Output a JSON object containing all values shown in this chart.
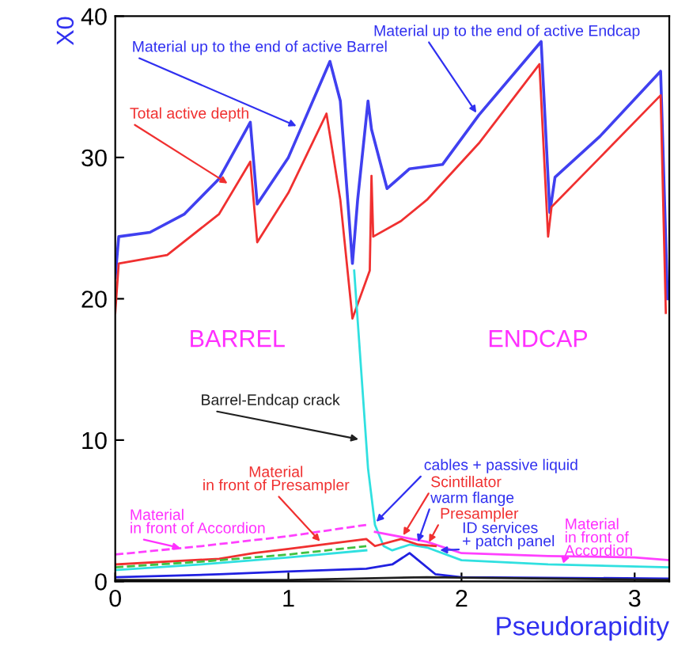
{
  "chart_data": {
    "type": "line",
    "xlabel": "Pseudorapidity",
    "ylabel": "X0",
    "xlim": [
      0,
      3.2
    ],
    "ylim": [
      0,
      40
    ],
    "xticks": [
      0,
      1,
      2,
      3
    ],
    "yticks": [
      0,
      10,
      20,
      30,
      40
    ],
    "grid": false,
    "legend": false,
    "marker": "none",
    "series": [
      {
        "color": "#4040f0",
        "x": [
          0,
          0.02,
          0.2,
          0.4,
          0.6,
          0.78,
          0.82,
          1.0,
          1.24,
          1.3,
          1.37,
          1.4,
          1.46,
          1.48,
          1.57,
          1.7,
          1.89,
          2.1,
          2.46,
          2.51,
          2.54,
          2.8,
          3.15,
          3.19
        ],
        "values": [
          21.5,
          24.4,
          24.7,
          26,
          28.5,
          32.5,
          26.7,
          30,
          36.8,
          34,
          22.5,
          27,
          34,
          32,
          27.8,
          29.2,
          29.5,
          33,
          38.2,
          26.1,
          28.6,
          31.5,
          36.1,
          20
        ]
      },
      {
        "color": "#f03030",
        "x": [
          0,
          0.02,
          0.3,
          0.6,
          0.78,
          0.82,
          1.0,
          1.22,
          1.3,
          1.37,
          1.47,
          1.48,
          1.49,
          1.65,
          1.8,
          2.1,
          2.45,
          2.5,
          2.52,
          2.8,
          3.15,
          3.18
        ],
        "values": [
          19,
          22.5,
          23.1,
          26,
          29.7,
          24,
          27.5,
          33.1,
          27,
          18.6,
          22,
          28.7,
          24.4,
          25.5,
          27,
          31,
          36.6,
          24.4,
          26.5,
          30,
          34.4,
          19
        ]
      },
      {
        "color": "#30e0e0",
        "x": [
          1.38,
          1.42,
          1.46,
          1.5,
          1.55,
          1.6,
          1.7,
          1.8,
          2.0,
          2.5,
          3.2
        ],
        "values": [
          22,
          15,
          8,
          4,
          2.5,
          2.2,
          2.6,
          2.4,
          1.5,
          1.2,
          1.0
        ]
      },
      {
        "color": "#30e0e0",
        "x": [
          0,
          0.5,
          1.0,
          1.45
        ],
        "values": [
          0.8,
          1.2,
          1.7,
          2.2
        ]
      },
      {
        "color": "#ff40ff",
        "line_style": "dashed",
        "x": [
          0,
          0.5,
          1.0,
          1.45
        ],
        "values": [
          1.9,
          2.5,
          3.2,
          4.0
        ]
      },
      {
        "color": "#ff40ff",
        "x": [
          1.5,
          1.8,
          2.0,
          2.5,
          3.0,
          3.2
        ],
        "values": [
          3.5,
          2.8,
          2.0,
          1.8,
          1.7,
          1.5
        ]
      },
      {
        "color": "#f03030",
        "x": [
          0,
          0.6,
          0.8,
          1.0,
          1.45,
          1.5,
          1.65,
          1.75,
          1.85
        ],
        "values": [
          1.2,
          1.6,
          2.0,
          2.3,
          3.0,
          2.5,
          3.0,
          2.6,
          2.5
        ]
      },
      {
        "color": "#40c040",
        "line_style": "dashed",
        "x": [
          0,
          0.5,
          1.0,
          1.45
        ],
        "values": [
          1.0,
          1.4,
          1.9,
          2.5
        ]
      },
      {
        "color": "#2020e0",
        "x": [
          0,
          0.6,
          1.0,
          1.45,
          1.6,
          1.7,
          1.85,
          2.0,
          3.2
        ],
        "values": [
          0.3,
          0.5,
          0.7,
          0.9,
          1.2,
          2.0,
          0.5,
          0.3,
          0.2
        ]
      },
      {
        "color": "#202020",
        "x": [
          0,
          1.0,
          1.8,
          3.2
        ],
        "values": [
          0.1,
          0.1,
          0.3,
          0.1
        ]
      }
    ],
    "annotations": [
      {
        "text": "Material up to the end of active Barrel",
        "x": 1.07,
        "y": 32.1
      },
      {
        "text": "Total active depth",
        "x": 0.67,
        "y": 28
      },
      {
        "text": "Material up to the end of active Endcap",
        "x": 2.1,
        "y": 32.9
      },
      "BARREL",
      "ENDCAP",
      {
        "text": "Barrel-Endcap crack",
        "x": 1.43,
        "y": 10
      },
      {
        "text": "Material\nin front of Presampler",
        "x": 1.2,
        "y": 2.6
      },
      {
        "text": "Material\nin front of Accordion",
        "x": 0.4,
        "y": 2.3
      },
      {
        "text": "cables + passive liquid",
        "x": 1.49,
        "y": 4
      },
      {
        "text": "Scintillator",
        "x": 1.65,
        "y": 3
      },
      {
        "text": "warm flange",
        "x": 1.74,
        "y": 2.5
      },
      {
        "text": "Presampler",
        "x": 1.8,
        "y": 2.5
      },
      {
        "text": "ID services\n+ patch panel",
        "x": 1.85,
        "y": 2.2
      },
      {
        "text": "Material\nin front of\nAccordion",
        "x": 2.65,
        "y": 1.8
      }
    ]
  }
}
